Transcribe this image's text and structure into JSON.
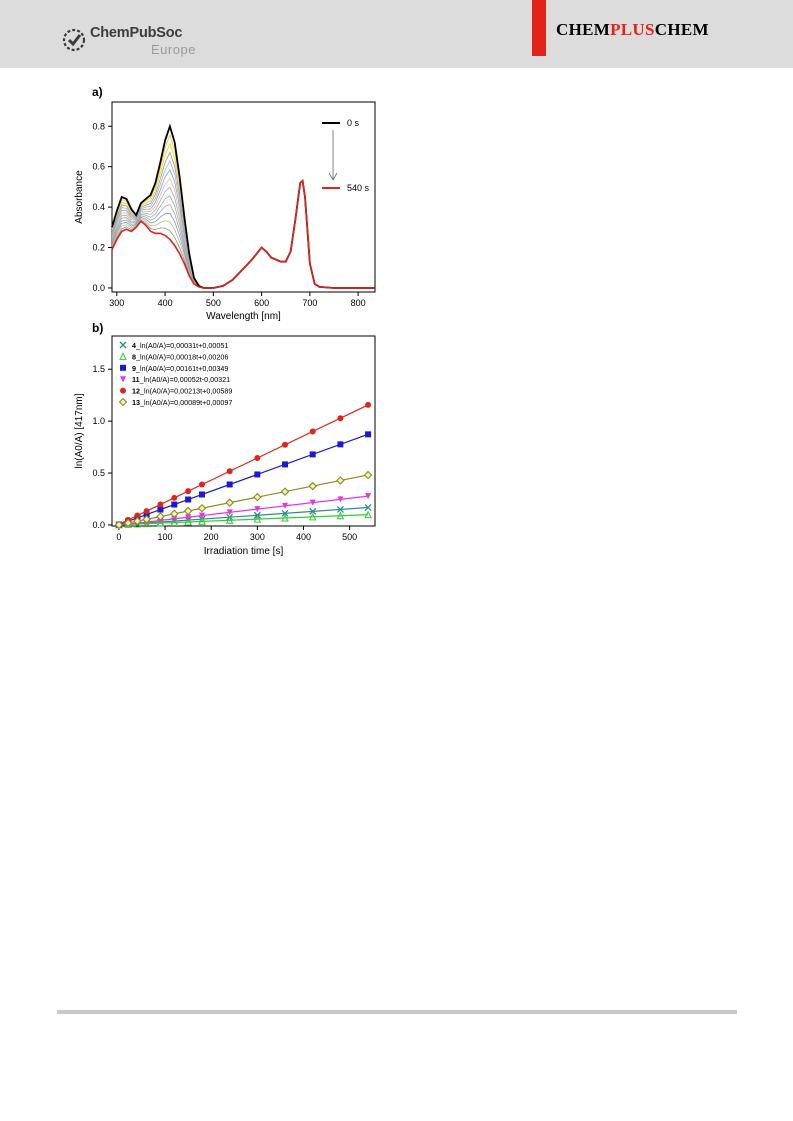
{
  "header": {
    "publisher_line1": "ChemPubSoc",
    "publisher_line2": "Europe",
    "journal_part1": "CHEM",
    "journal_part2": "PLUS",
    "journal_part3": "CHEM",
    "accent_color": "#e2231a"
  },
  "chart_data": [
    {
      "type": "line",
      "panel_label": "a)",
      "xlabel": "Wavelength [nm]",
      "ylabel": "Absorbance",
      "xlim": [
        290,
        835
      ],
      "ylim": [
        -0.02,
        0.92
      ],
      "xticks": [
        300,
        400,
        500,
        600,
        700,
        800
      ],
      "yticks": [
        0.0,
        0.2,
        0.4,
        0.6,
        0.8
      ],
      "legend": [
        "0 s",
        "540 s"
      ],
      "legend_placement": "top-right",
      "series": [
        {
          "name": "0 s",
          "color": "#000000",
          "x": [
            290,
            300,
            310,
            320,
            330,
            340,
            350,
            360,
            370,
            380,
            390,
            400,
            410,
            420,
            430,
            440,
            450,
            460,
            470,
            480,
            500,
            520,
            540,
            560,
            580,
            590,
            600,
            610,
            620,
            630,
            640,
            650,
            660,
            670,
            680,
            685,
            690,
            700,
            710,
            720,
            750,
            800,
            835
          ],
          "y": [
            0.3,
            0.38,
            0.45,
            0.44,
            0.39,
            0.36,
            0.42,
            0.44,
            0.46,
            0.52,
            0.62,
            0.73,
            0.8,
            0.72,
            0.55,
            0.35,
            0.17,
            0.05,
            0.01,
            0.0,
            0.0,
            0.01,
            0.04,
            0.09,
            0.14,
            0.17,
            0.2,
            0.18,
            0.15,
            0.14,
            0.13,
            0.13,
            0.18,
            0.34,
            0.52,
            0.53,
            0.45,
            0.12,
            0.02,
            0.005,
            0.0,
            0.0,
            0.0
          ]
        },
        {
          "name": "540 s",
          "color": "#e2231a",
          "x": [
            290,
            300,
            310,
            320,
            330,
            340,
            350,
            360,
            370,
            380,
            390,
            400,
            410,
            420,
            430,
            440,
            450,
            460,
            470,
            480,
            500,
            520,
            540,
            560,
            580,
            590,
            600,
            610,
            620,
            630,
            640,
            650,
            660,
            670,
            680,
            685,
            690,
            700,
            710,
            720,
            750,
            800,
            835
          ],
          "y": [
            0.19,
            0.24,
            0.28,
            0.29,
            0.28,
            0.3,
            0.33,
            0.31,
            0.28,
            0.27,
            0.27,
            0.26,
            0.24,
            0.21,
            0.17,
            0.12,
            0.06,
            0.02,
            0.005,
            0.0,
            0.0,
            0.01,
            0.04,
            0.09,
            0.14,
            0.17,
            0.2,
            0.18,
            0.15,
            0.14,
            0.13,
            0.13,
            0.18,
            0.34,
            0.52,
            0.53,
            0.45,
            0.12,
            0.02,
            0.005,
            0.0,
            0.0,
            0.0
          ]
        }
      ],
      "intermediate_count": 12
    },
    {
      "type": "scatter",
      "panel_label": "b)",
      "xlabel": "Irradiation time [s]",
      "ylabel": "ln(A0/A)    [417nm]",
      "xlim": [
        -15,
        555
      ],
      "ylim": [
        -0.01,
        1.82
      ],
      "xticks": [
        0,
        100,
        200,
        300,
        400,
        500
      ],
      "yticks": [
        0.0,
        0.5,
        1.0,
        1.5
      ],
      "legend_placement": "top-left",
      "x": [
        0,
        20,
        40,
        60,
        90,
        120,
        150,
        180,
        240,
        300,
        360,
        420,
        480,
        540
      ],
      "series": [
        {
          "name": "4_ln(A0/A)=0,00031t+0,00051",
          "label_bold": "4",
          "label_rest": "_ln(A0/A)=0,00031t+0,00051",
          "slope": 0.00031,
          "intercept": 0.00051,
          "marker": "x",
          "color": "#2a8c8c"
        },
        {
          "name": "8_ln(A0/A)=0,00018t+0,00206",
          "label_bold": "8",
          "label_rest": "_ln(A0/A)=0,00018t+0,00206",
          "slope": 0.00018,
          "intercept": 0.00206,
          "marker": "triangle-open",
          "color": "#33cc33"
        },
        {
          "name": "9_ln(A0/A)=0,00161t+0,00349",
          "label_bold": "9",
          "label_rest": "_ln(A0/A)=0,00161t+0,00349",
          "slope": 0.00161,
          "intercept": 0.00349,
          "marker": "square",
          "color": "#1a1ad4"
        },
        {
          "name": "11_ln(A0/A)=0,00052t-0,00321",
          "label_bold": "11",
          "label_rest": "_ln(A0/A)=0,00052t-0,00321",
          "slope": 0.00052,
          "intercept": -0.00321,
          "marker": "triangle-down",
          "color": "#e633e6"
        },
        {
          "name": "12_ln(A0/A)=0,00213t+0,00589",
          "label_bold": "12",
          "label_rest": "_ln(A0/A)=0,00213t+0,00589",
          "slope": 0.00213,
          "intercept": 0.00589,
          "marker": "circle",
          "color": "#e2231a"
        },
        {
          "name": "13_ln(A0/A)=0,00089t+0,00097",
          "label_bold": "13",
          "label_rest": "_ln(A0/A)=0,00089t+0,00097",
          "slope": 0.00089,
          "intercept": 0.00097,
          "marker": "diamond-open",
          "color": "#8c8c1a"
        }
      ]
    }
  ]
}
